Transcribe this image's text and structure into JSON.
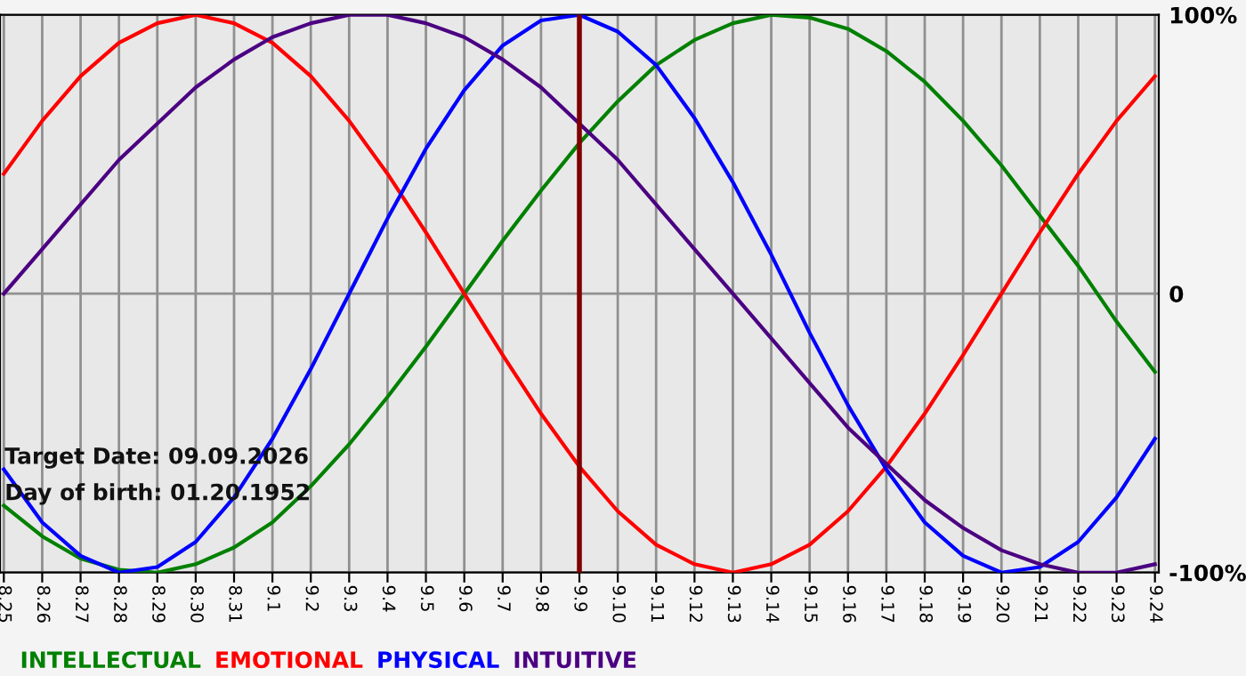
{
  "chart_data": {
    "type": "line",
    "categories": [
      "8.25",
      "8.26",
      "8.27",
      "8.28",
      "8.29",
      "8.30",
      "8.31",
      "9.1",
      "9.2",
      "9.3",
      "9.4",
      "9.5",
      "9.6",
      "9.7",
      "9.8",
      "9.9",
      "9.10",
      "9.11",
      "9.12",
      "9.13",
      "9.14",
      "9.15",
      "9.16",
      "9.17",
      "9.18",
      "9.19",
      "9.20",
      "9.21",
      "9.22",
      "9.23",
      "9.24"
    ],
    "series": [
      {
        "name": "INTELLECTUAL",
        "color": "#008000",
        "values": [
          -76,
          -87,
          -95,
          -99,
          -100,
          -97,
          -91,
          -82,
          -69,
          -54,
          -37,
          -19,
          0,
          19,
          37,
          54,
          69,
          82,
          91,
          97,
          100,
          99,
          95,
          87,
          76,
          62,
          46,
          28,
          10,
          -10,
          -28
        ]
      },
      {
        "name": "EMOTIONAL",
        "color": "#ff0000",
        "values": [
          43,
          62,
          78,
          90,
          97,
          100,
          97,
          90,
          78,
          62,
          43,
          22,
          0,
          -22,
          -43,
          -62,
          -78,
          -90,
          -97,
          -100,
          -97,
          -90,
          -78,
          -62,
          -43,
          -22,
          0,
          22,
          43,
          62,
          78
        ]
      },
      {
        "name": "PHYSICAL",
        "color": "#0000ff",
        "values": [
          -63,
          -82,
          -94,
          -100,
          -98,
          -89,
          -73,
          -52,
          -27,
          0,
          27,
          52,
          73,
          89,
          98,
          100,
          94,
          82,
          63,
          40,
          14,
          -14,
          -40,
          -63,
          -82,
          -94,
          -100,
          -98,
          -89,
          -73,
          -52
        ]
      },
      {
        "name": "INTUITIVE",
        "color": "#4b0082",
        "values": [
          0,
          16,
          32,
          48,
          61,
          74,
          84,
          92,
          97,
          100,
          100,
          97,
          92,
          84,
          74,
          61,
          48,
          32,
          16,
          0,
          -16,
          -32,
          -48,
          -61,
          -74,
          -84,
          -92,
          -97,
          -100,
          -100,
          -97
        ]
      }
    ],
    "ylim": [
      -100,
      100
    ],
    "yticks": [
      {
        "value": -100,
        "label": "-100%"
      },
      0,
      {
        "value": 100,
        "label": "100%"
      }
    ],
    "grid": true,
    "legend": "bottom",
    "marker": "none",
    "line_style": "solid",
    "ref_lines": [
      {
        "axis": "x",
        "value": "9.9",
        "color": "#800000"
      }
    ],
    "annotations": [
      "Target Date: 09.09.2026",
      "Day of birth: 01.20.1952"
    ]
  }
}
